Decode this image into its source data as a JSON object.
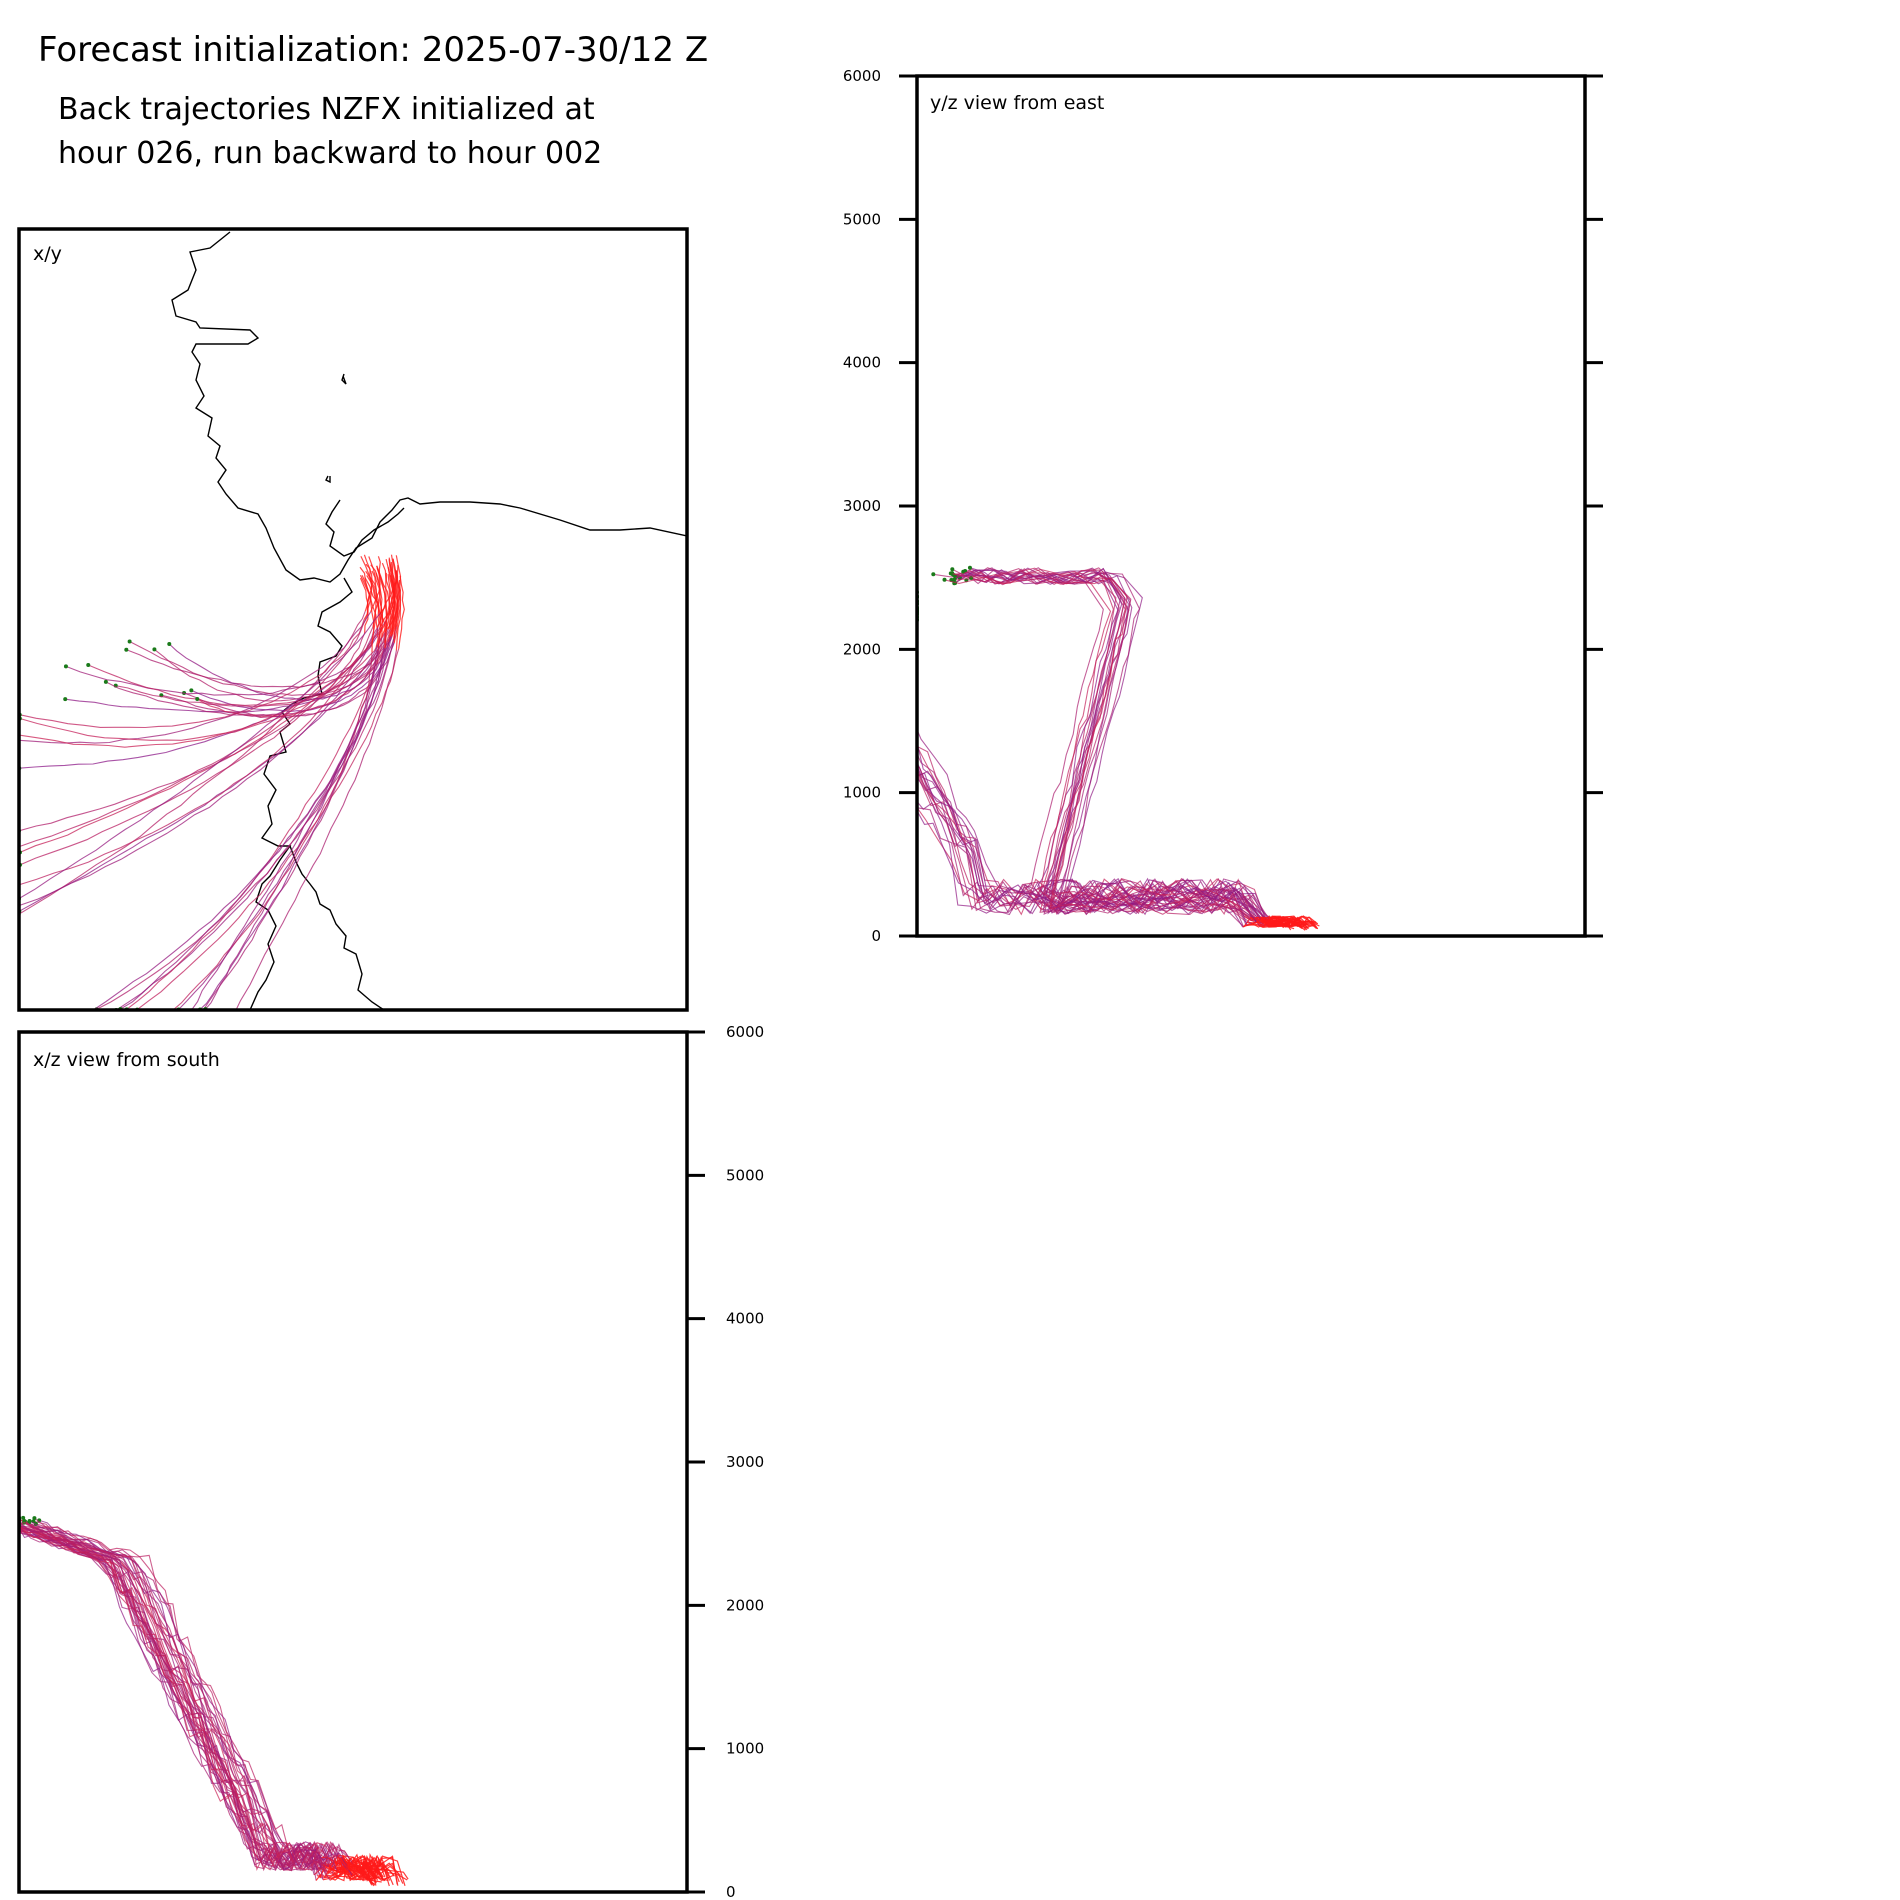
{
  "header": {
    "title": "Forecast initialization: 2025-07-30/12 Z",
    "subtitle_line1": "Back trajectories NZFX initialized at",
    "subtitle_line2": "hour 026, run backward to hour 002"
  },
  "colors": {
    "recent_segment": "#ff1a1a",
    "trajectory_start": "#cc2255",
    "trajectory_end": "#8a1a8a",
    "endpoint_marker": "#1a7a1a",
    "coastline": "#000000"
  },
  "chart_data": [
    {
      "type": "line",
      "panel": "x/y",
      "title": "x/y",
      "xlabel": "",
      "ylabel": "",
      "ticks": [],
      "coastline": "Antarctic coast (Ross Sea / McMurdo region)",
      "trajectory_count": 40
    },
    {
      "type": "line",
      "panel": "y/z view from east",
      "title": "y/z view from east",
      "xlabel": "",
      "ylabel": "",
      "ylim": [
        0,
        6000
      ],
      "yticks": [
        "0",
        "1000",
        "2000",
        "3000",
        "4000",
        "5000",
        "6000"
      ],
      "ytick_side": "left",
      "grid": false
    },
    {
      "type": "line",
      "panel": "x/z view from south",
      "title": "x/z view from south",
      "xlabel": "",
      "ylabel": "",
      "ylim": [
        0,
        6000
      ],
      "yticks": [
        "0",
        "1000",
        "2000",
        "3000",
        "4000",
        "5000",
        "6000"
      ],
      "ytick_side": "right",
      "grid": false
    }
  ]
}
